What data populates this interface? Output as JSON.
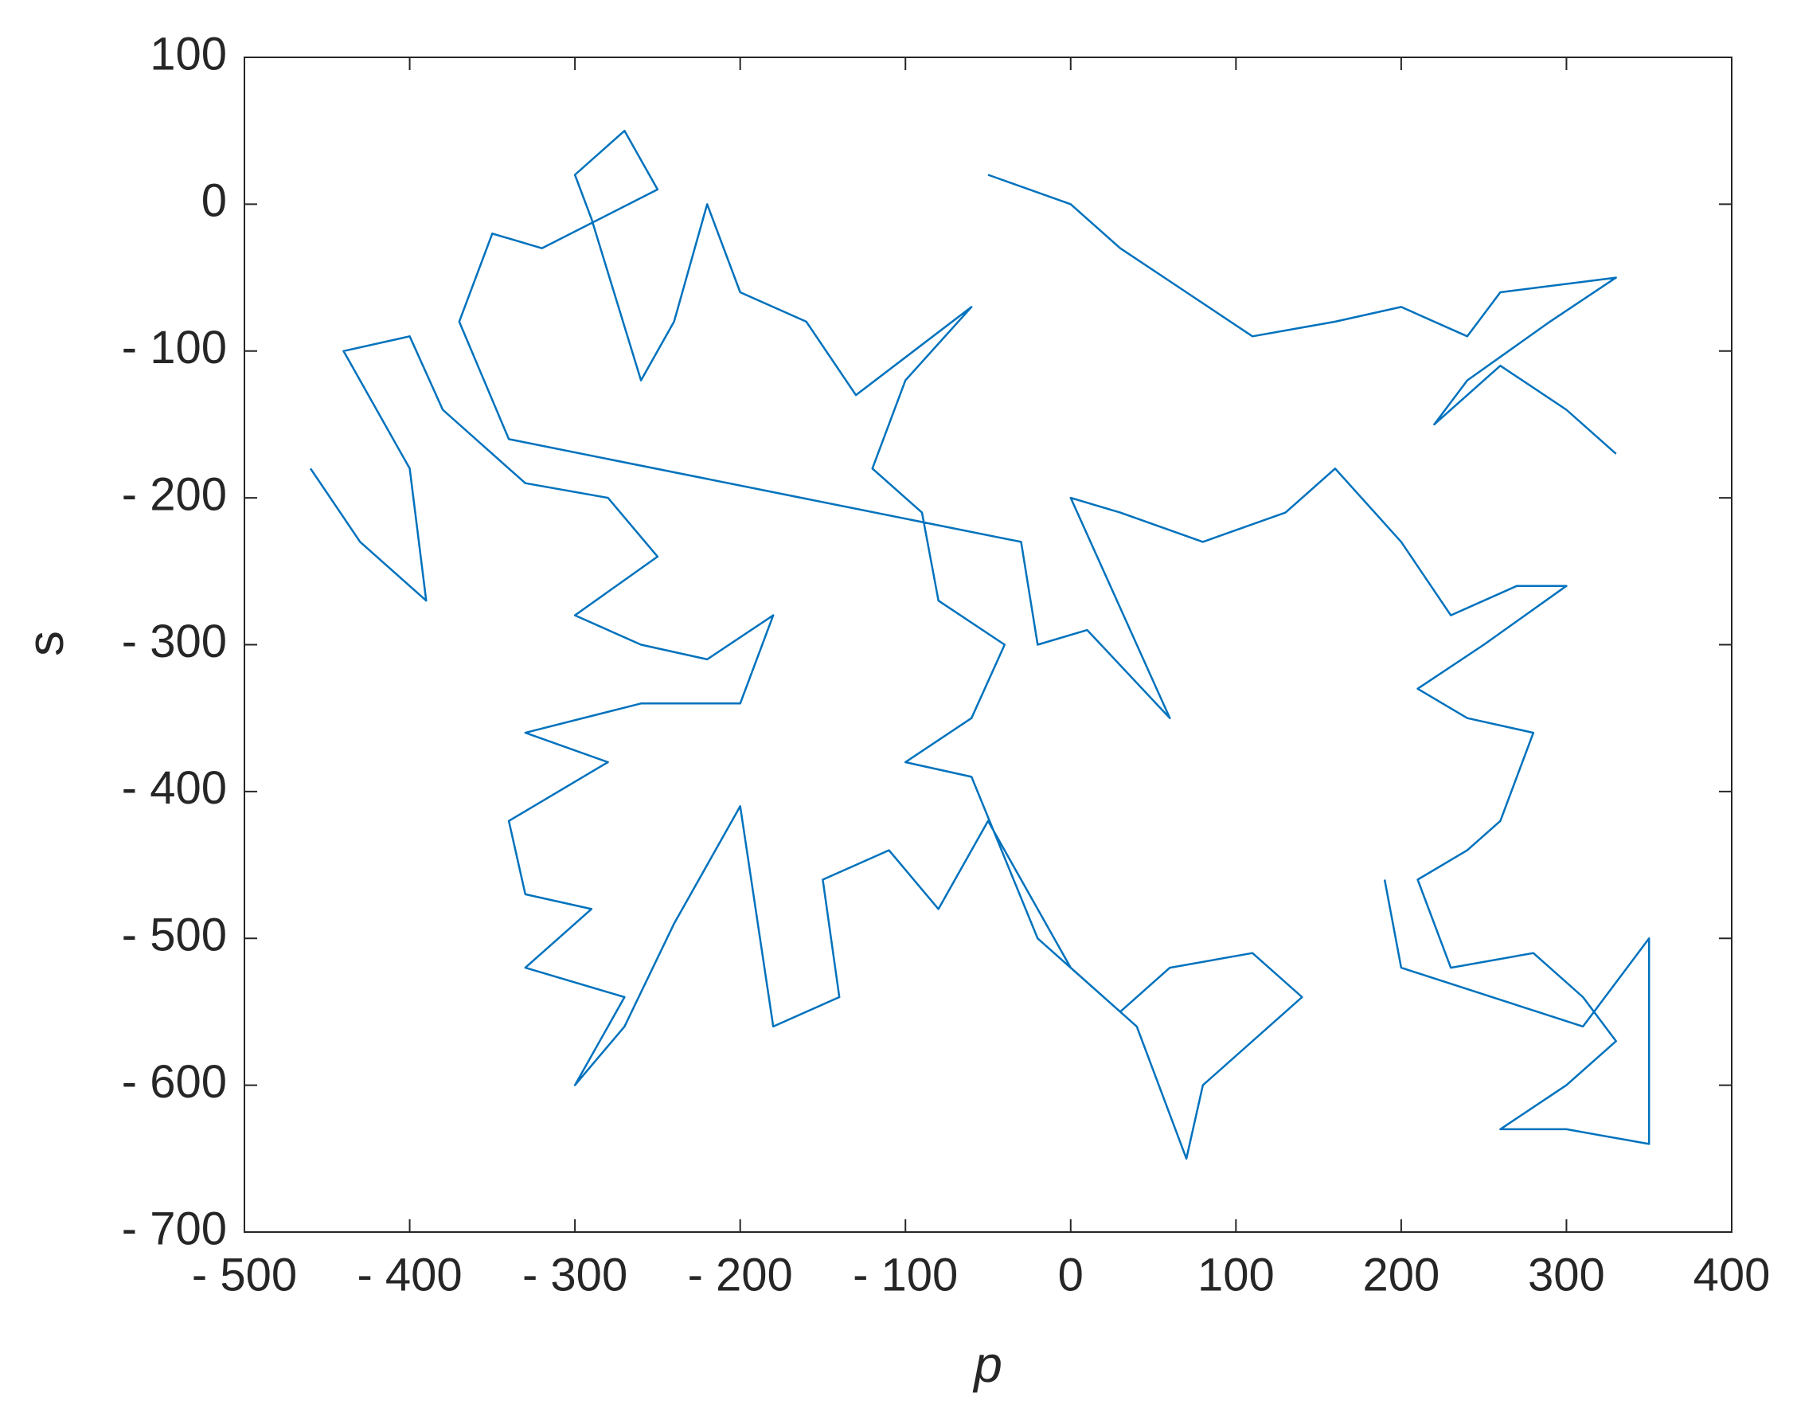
{
  "chart_data": {
    "type": "line",
    "xlabel": "p",
    "ylabel": "s",
    "xlim": [
      -500,
      400
    ],
    "xticks": [
      {
        "value": -500,
        "label": "- 500"
      },
      {
        "value": -400,
        "label": "- 400"
      },
      {
        "value": -300,
        "label": "- 300"
      },
      {
        "value": -200,
        "label": "- 200"
      },
      {
        "value": -100,
        "label": "- 100"
      },
      0,
      100,
      200,
      300,
      400
    ],
    "ylim": [
      -700,
      100
    ],
    "yticks": [
      {
        "value": -700,
        "label": "- 700"
      },
      {
        "value": -600,
        "label": "- 600"
      },
      {
        "value": -500,
        "label": "- 500"
      },
      {
        "value": -400,
        "label": "- 400"
      },
      {
        "value": -300,
        "label": "- 300"
      },
      {
        "value": -200,
        "label": "- 200"
      },
      {
        "value": -100,
        "label": "- 100"
      },
      0,
      100
    ],
    "grid": false,
    "x": [
      -460,
      -430,
      -390,
      -400,
      -440,
      -400,
      -380,
      -330,
      -280,
      -250,
      -300,
      -260,
      -220,
      -180,
      -200,
      -260,
      -330,
      -280,
      -340,
      -330,
      -290,
      -330,
      -270,
      -300,
      -270,
      -240,
      -200,
      -180,
      -140,
      -150,
      -110,
      -80,
      -50,
      -30,
      0,
      30,
      60,
      110,
      140,
      80,
      70,
      40,
      -20,
      -60,
      -100,
      -60,
      -40,
      -80,
      -90,
      -120,
      -100,
      -60,
      -130,
      -160,
      -200,
      -220,
      -240,
      -260,
      -290,
      -300,
      -270,
      -250,
      -320,
      -350,
      -370,
      -340,
      -30,
      -20,
      10,
      60,
      0,
      30,
      80,
      130,
      160,
      200,
      230,
      270,
      300,
      250,
      210,
      240,
      280,
      260,
      240,
      210,
      230,
      280,
      310,
      330,
      300,
      260,
      300,
      350,
      350,
      310,
      200,
      190,
      null,
      -50,
      0,
      30,
      70,
      110,
      160,
      200,
      240,
      260,
      330,
      290,
      240,
      220,
      260,
      300,
      330
    ],
    "series": [
      {
        "color": "#0072bd",
        "values": [
          -180,
          -230,
          -270,
          -180,
          -100,
          -90,
          -140,
          -190,
          -200,
          -240,
          -280,
          -300,
          -310,
          -280,
          -340,
          -340,
          -360,
          -380,
          -420,
          -470,
          -480,
          -520,
          -540,
          -600,
          -560,
          -490,
          -410,
          -560,
          -540,
          -460,
          -440,
          -480,
          -420,
          -460,
          -520,
          -550,
          -520,
          -510,
          -540,
          -600,
          -650,
          -560,
          -500,
          -390,
          -380,
          -350,
          -300,
          -270,
          -210,
          -180,
          -120,
          -70,
          -130,
          -80,
          -60,
          0,
          -80,
          -120,
          -10,
          20,
          50,
          10,
          -30,
          -20,
          -80,
          -160,
          -230,
          -300,
          -290,
          -350,
          -200,
          -210,
          -230,
          -210,
          -180,
          -230,
          -280,
          -260,
          -260,
          -300,
          -330,
          -350,
          -360,
          -420,
          -440,
          -460,
          -520,
          -510,
          -540,
          -570,
          -600,
          -630,
          -630,
          -640,
          -500,
          -560,
          -520,
          -460,
          null,
          20,
          0,
          -30,
          -60,
          -90,
          -80,
          -70,
          -90,
          -60,
          -50,
          -80,
          -120,
          -150,
          -110,
          -140,
          -170
        ]
      }
    ]
  }
}
